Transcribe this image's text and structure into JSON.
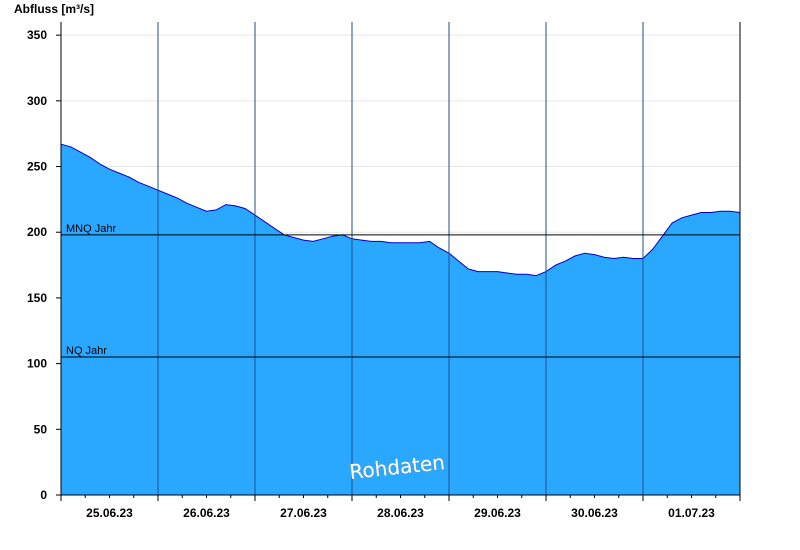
{
  "watermark": "Rohdaten",
  "chart_data": {
    "type": "area",
    "title": "",
    "ylabel": "Abfluss [m³/s]",
    "xlabel": "",
    "ylim": [
      0,
      360
    ],
    "yticks": [
      0,
      50,
      100,
      150,
      200,
      250,
      300,
      350
    ],
    "xlim": [
      0,
      7
    ],
    "day_ticks": [
      {
        "label": "25.06.23",
        "x": 0.5
      },
      {
        "label": "26.06.23",
        "x": 1.5
      },
      {
        "label": "27.06.23",
        "x": 2.5
      },
      {
        "label": "28.06.23",
        "x": 3.5
      },
      {
        "label": "29.06.23",
        "x": 4.5
      },
      {
        "label": "30.06.23",
        "x": 5.5
      },
      {
        "label": "01.07.23",
        "x": 6.5
      }
    ],
    "day_boundaries": [
      1,
      2,
      3,
      4,
      5,
      6
    ],
    "grid": true,
    "reference_lines": [
      {
        "label": "MNQ Jahr",
        "value": 198
      },
      {
        "label": "NQ Jahr",
        "value": 105
      }
    ],
    "fill_color": "#2aa8ff",
    "line_color": "#0000cc",
    "series": [
      {
        "x": [
          0,
          0.1,
          0.2,
          0.3,
          0.4,
          0.5,
          0.6,
          0.7,
          0.8,
          0.9,
          1.0,
          1.1,
          1.2,
          1.3,
          1.4,
          1.5,
          1.6,
          1.7,
          1.8,
          1.9,
          2.0,
          2.1,
          2.2,
          2.3,
          2.4,
          2.5,
          2.6,
          2.7,
          2.8,
          2.9,
          3.0,
          3.1,
          3.2,
          3.3,
          3.4,
          3.5,
          3.6,
          3.7,
          3.8,
          3.9,
          4.0,
          4.1,
          4.2,
          4.3,
          4.4,
          4.5,
          4.6,
          4.7,
          4.8,
          4.9,
          5.0,
          5.1,
          5.2,
          5.3,
          5.4,
          5.5,
          5.6,
          5.7,
          5.8,
          5.9,
          6.0,
          6.1,
          6.2,
          6.3,
          6.4,
          6.5,
          6.6,
          6.7,
          6.8,
          6.9,
          7.0
        ],
        "values": [
          267,
          265,
          261,
          257,
          252,
          248,
          245,
          242,
          238,
          235,
          232,
          229,
          226,
          222,
          219,
          216,
          217,
          221,
          220,
          218,
          213,
          208,
          203,
          198,
          196,
          194,
          193,
          195,
          197,
          198,
          195,
          194,
          193,
          193,
          192,
          192,
          192,
          192,
          193,
          188,
          184,
          178,
          172,
          170,
          170,
          170,
          169,
          168,
          168,
          167,
          170,
          175,
          178,
          182,
          184,
          183,
          181,
          180,
          181,
          180,
          180,
          187,
          197,
          207,
          211,
          213,
          215,
          215,
          216,
          216,
          215
        ]
      }
    ]
  }
}
